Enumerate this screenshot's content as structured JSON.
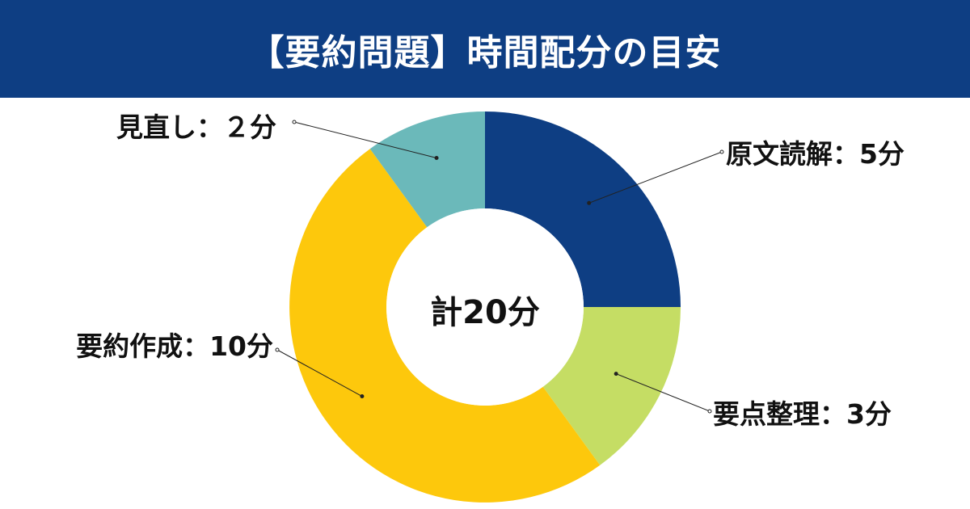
{
  "header": {
    "title": "【要約問題】時間配分の目安"
  },
  "chart_data": {
    "type": "donut",
    "title": "【要約問題】時間配分の目安",
    "center_label": "計20分",
    "total": 20,
    "unit": "分",
    "slices": [
      {
        "label": "原文読解：5分",
        "value": 5,
        "color": "#0e3e83"
      },
      {
        "label": "要点整理：3分",
        "value": 3,
        "color": "#c5dd64"
      },
      {
        "label": "要約作成：10分",
        "value": 10,
        "color": "#fdc80c"
      },
      {
        "label": "見直し：２分",
        "value": 2,
        "color": "#6bb9ba"
      }
    ]
  }
}
